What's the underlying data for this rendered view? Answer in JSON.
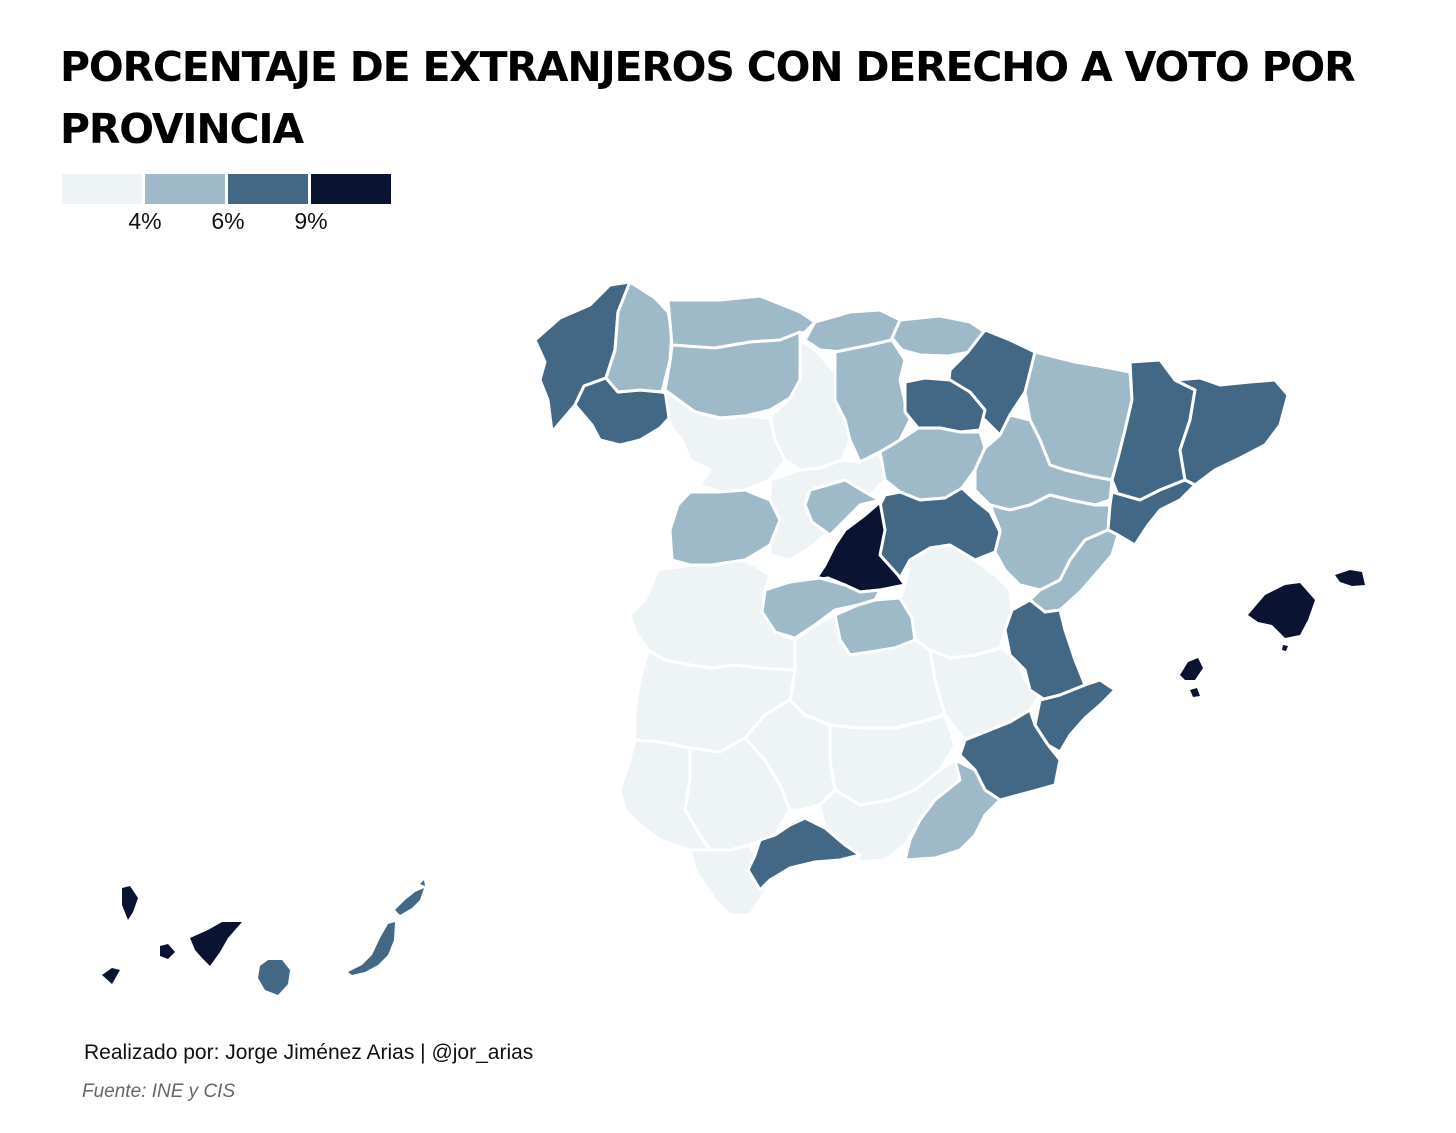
{
  "title": "PORCENTAJE DE EXTRANJEROS CON DERECHO A VOTO POR PROVINCIA",
  "legend": {
    "bins": [
      {
        "color": "#eef3f6"
      },
      {
        "color": "#9eb9c7"
      },
      {
        "color": "#436885"
      },
      {
        "color": "#0b1333"
      }
    ],
    "ticks": [
      "4%",
      "6%",
      "9%"
    ]
  },
  "colors": {
    "background": "#ffffff",
    "border": "#ffffff",
    "bin_1": "#eef3f6",
    "bin_2": "#9eb9c7",
    "bin_3": "#436885",
    "bin_4": "#0b1333"
  },
  "credit": "Realizado por: Jorge Jiménez Arias | @jor_arias",
  "source": "Fuente: INE y CIS"
}
